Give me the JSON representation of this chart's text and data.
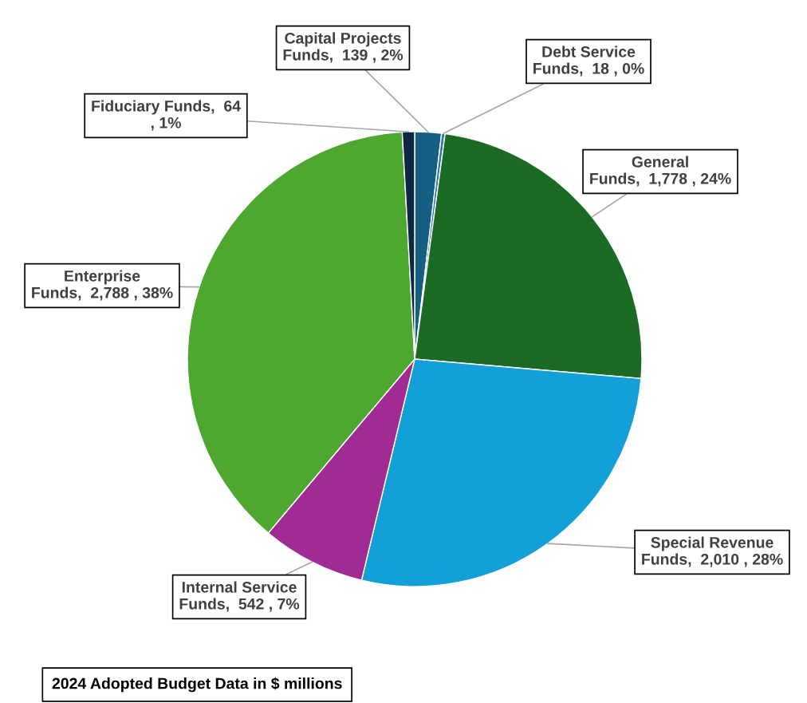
{
  "chart_data": {
    "type": "pie",
    "categories": [
      "Capital Projects Funds",
      "Debt Service Funds",
      "General Funds",
      "Special Revenue Funds",
      "Internal Service Funds",
      "Enterprise Funds",
      "Fiduciary Funds"
    ],
    "values": [
      139,
      18,
      1778,
      2010,
      542,
      2788,
      64
    ],
    "value_labels": [
      "139 , 2%",
      "18 , 0%",
      "1,778 , 24%",
      "2,010 , 28%",
      "542 , 7%",
      "2,788 , 38%",
      "64 , 1%"
    ],
    "colors": [
      "#156082",
      "#2e75b6",
      "#1b6b24",
      "#12a0d7",
      "#a02b93",
      "#4ea72e",
      "#0e2841"
    ],
    "annotations": [
      "2024 Adopted Budget Data in $ millions"
    ],
    "legend": false
  }
}
